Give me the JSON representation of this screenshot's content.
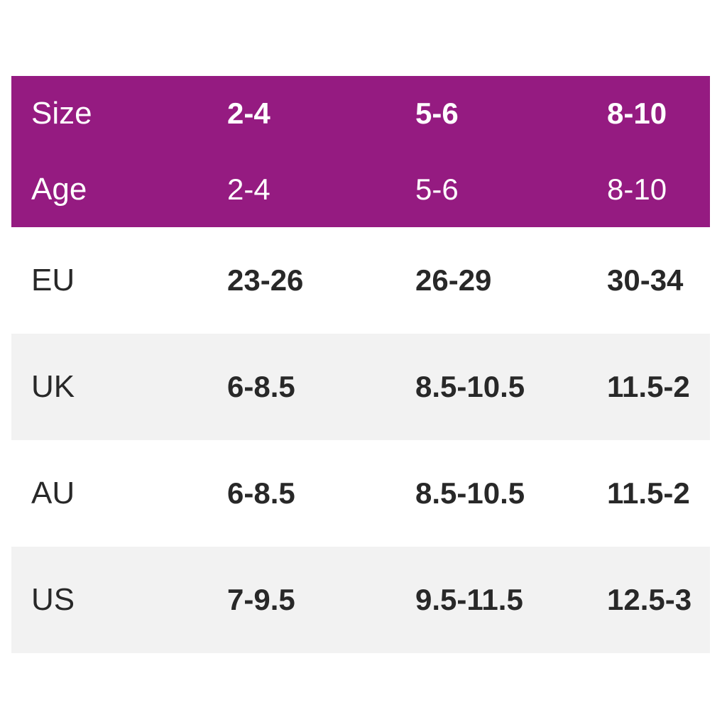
{
  "colors": {
    "header_bg": "#951b81",
    "header_text": "#ffffff",
    "row_bg": "#ffffff",
    "row_alt_bg": "#f2f2f2",
    "body_text": "#282828"
  },
  "size_chart": {
    "header_rows": [
      {
        "label": "Size",
        "values": [
          "2-4",
          "5-6",
          "8-10"
        ]
      },
      {
        "label": "Age",
        "values": [
          "2-4",
          "5-6",
          "8-10"
        ]
      }
    ],
    "body_rows": [
      {
        "label": "EU",
        "values": [
          "23-26",
          "26-29",
          "30-34"
        ]
      },
      {
        "label": "UK",
        "values": [
          "6-8.5",
          "8.5-10.5",
          "11.5-2"
        ]
      },
      {
        "label": "AU",
        "values": [
          "6-8.5",
          "8.5-10.5",
          "11.5-2"
        ]
      },
      {
        "label": "US",
        "values": [
          "7-9.5",
          "9.5-11.5",
          "12.5-3"
        ]
      }
    ]
  },
  "chart_data": {
    "type": "table",
    "columns": [
      "Size",
      "2-4",
      "5-6",
      "8-10"
    ],
    "rows": [
      [
        "Age",
        "2-4",
        "5-6",
        "8-10"
      ],
      [
        "EU",
        "23-26",
        "26-29",
        "30-34"
      ],
      [
        "UK",
        "6-8.5",
        "8.5-10.5",
        "11.5-2"
      ],
      [
        "AU",
        "6-8.5",
        "8.5-10.5",
        "11.5-2"
      ],
      [
        "US",
        "7-9.5",
        "9.5-11.5",
        "12.5-3"
      ]
    ],
    "layout": {
      "header_background": "#951b81",
      "alternating_row_background": "#f2f2f2",
      "value_alignment": "left",
      "grid": "off"
    }
  }
}
